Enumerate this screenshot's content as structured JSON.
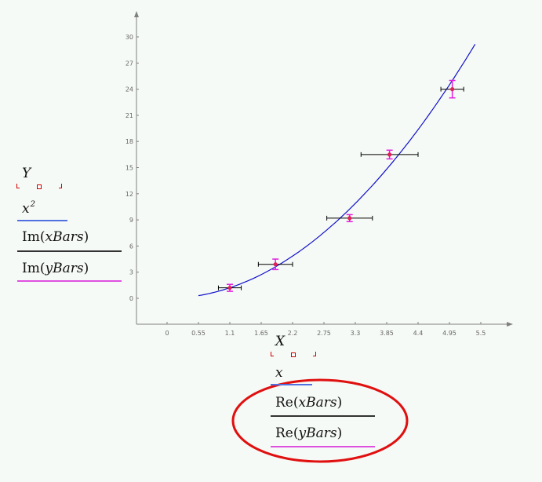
{
  "y_axis_labels": {
    "y_var": "Y",
    "x_squared_base": "x",
    "x_squared_exp": "2",
    "im_fn": "Im",
    "xbars_arg": "xBars",
    "ybars_arg": "yBars"
  },
  "x_axis_labels": {
    "x_var": "X",
    "x_lower": "x",
    "re_fn": "Re",
    "xbars_arg": "xBars",
    "ybars_arg": "yBars"
  },
  "colors": {
    "curve": "#1010cc",
    "xbar": "#000000",
    "ybar": "#e020e0",
    "point": "#e0205a",
    "axis": "#808080",
    "highlight": "#e01010",
    "trace_blue": "#5070e0",
    "trace_black": "#333333",
    "trace_magenta": "#e050e0"
  },
  "chart_data": {
    "type": "scatter",
    "x_ticks": [
      "0",
      "0.55",
      "1.1",
      "1.65",
      "2.2",
      "2.75",
      "3.3",
      "3.85",
      "4.4",
      "4.95",
      "5.5"
    ],
    "y_ticks": [
      "0",
      "3",
      "6",
      "9",
      "12",
      "15",
      "18",
      "21",
      "24",
      "27",
      "30"
    ],
    "xlim": [
      -0.55,
      6.05
    ],
    "ylim": [
      -3,
      33.3
    ],
    "series": [
      {
        "kind": "line",
        "function": "x^2",
        "x_range": [
          0.55,
          5.4
        ]
      },
      {
        "kind": "points_with_errorbars",
        "points": [
          {
            "x": 1.1,
            "y": 1.2,
            "xerr": 0.2,
            "yerr": 0.4
          },
          {
            "x": 1.9,
            "y": 3.9,
            "xerr": 0.3,
            "yerr": 0.6
          },
          {
            "x": 3.2,
            "y": 9.2,
            "xerr": 0.4,
            "yerr": 0.4
          },
          {
            "x": 3.9,
            "y": 16.5,
            "xerr": 0.5,
            "yerr": 0.5
          },
          {
            "x": 5.0,
            "y": 24.0,
            "xerr": 0.2,
            "yerr": 1.0
          }
        ]
      }
    ]
  }
}
